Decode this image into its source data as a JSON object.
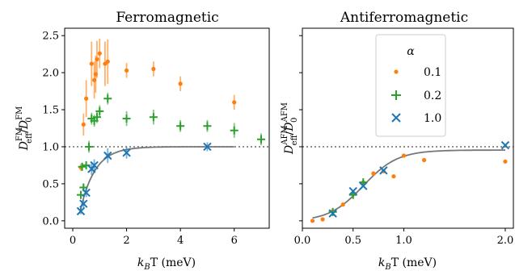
{
  "colors": {
    "orange": "#ff7f0e",
    "green": "#2ca02c",
    "blue": "#1f77b4",
    "fit": "#777777",
    "ref": "#777777"
  },
  "chart_data": [
    {
      "type": "scatter",
      "title": "Ferromagnetic",
      "xlabel_parts": {
        "main": "k",
        "sub": "B",
        "rest": "T (meV)"
      },
      "ylabel_parts": {
        "n1": "D",
        "n1sub": "eff",
        "n1sup": "FM",
        "sep": "/",
        "n2": "D",
        "n2sub": "0",
        "n2sup": "FM"
      },
      "xlim": [
        -0.3,
        7.3
      ],
      "ylim": [
        -0.1,
        2.6
      ],
      "xticks": [
        0,
        2,
        4,
        6
      ],
      "xtick_labels": [
        "0",
        "2",
        "4",
        "6"
      ],
      "yticks": [
        0.0,
        0.5,
        1.0,
        1.5,
        2.0,
        2.5
      ],
      "ytick_labels": [
        "0.0",
        "0.5",
        "1.0",
        "1.5",
        "2.0",
        "2.5"
      ],
      "reference_line": 1.0,
      "series": [
        {
          "alpha": "0.1",
          "marker": "dot",
          "color": "#ff7f0e",
          "x": [
            0.3,
            0.4,
            0.5,
            0.7,
            0.8,
            0.85,
            0.9,
            1.0,
            1.2,
            1.3,
            2.0,
            3.0,
            4.0,
            6.0
          ],
          "y": [
            0.72,
            1.3,
            1.65,
            2.12,
            1.9,
            1.98,
            2.18,
            2.26,
            2.12,
            2.15,
            2.03,
            2.05,
            1.85,
            1.6
          ],
          "err": [
            0.05,
            0.15,
            0.25,
            0.3,
            0.25,
            0.25,
            0.25,
            0.2,
            0.3,
            0.3,
            0.1,
            0.1,
            0.1,
            0.1
          ]
        },
        {
          "alpha": "0.2",
          "marker": "plus",
          "color": "#2ca02c",
          "x": [
            0.3,
            0.35,
            0.4,
            0.5,
            0.6,
            0.7,
            0.8,
            0.9,
            1.0,
            1.3,
            2.0,
            3.0,
            4.0,
            5.0,
            6.0,
            7.0
          ],
          "y": [
            0.35,
            0.73,
            0.45,
            0.75,
            1.0,
            1.38,
            1.35,
            1.4,
            1.48,
            1.65,
            1.38,
            1.4,
            1.28,
            1.28,
            1.22,
            1.1
          ],
          "err": [
            0.05,
            0.05,
            0.05,
            0.05,
            0.08,
            0.08,
            0.08,
            0.08,
            0.08,
            0.08,
            0.1,
            0.1,
            0.08,
            0.08,
            0.1,
            0.08
          ]
        },
        {
          "alpha": "1.0",
          "marker": "x",
          "color": "#1f77b4",
          "x": [
            0.3,
            0.4,
            0.5,
            0.7,
            0.8,
            1.3,
            2.0,
            5.0
          ],
          "y": [
            0.13,
            0.23,
            0.38,
            0.7,
            0.75,
            0.88,
            0.92,
            1.0
          ],
          "err": [
            0.04,
            0.05,
            0.06,
            0.08,
            0.08,
            0.1,
            0.08,
            0.06
          ]
        }
      ],
      "fit": {
        "x0": 0.27,
        "x1": 6.0,
        "Tc": 0.55
      }
    },
    {
      "type": "scatter",
      "title": "Antiferromagnetic",
      "xlabel_parts": {
        "main": "k",
        "sub": "B",
        "rest": "T (meV)"
      },
      "ylabel_parts": {
        "n1": "D",
        "n1sub": "eff",
        "n1sup": "AFM",
        "sep": "/",
        "n2": "D",
        "n2sub": "0",
        "n2sup": "AFM"
      },
      "xlim": [
        -0.0,
        2.08
      ],
      "ylim": [
        -0.1,
        2.6
      ],
      "xticks": [
        0,
        0.5,
        1,
        2
      ],
      "xtick_labels": [
        "0.0",
        "0.5",
        "1.0",
        "2.0"
      ],
      "yticks": [
        0.0,
        0.5,
        1.0,
        1.5,
        2.0,
        2.5
      ],
      "reference_line": 1.0,
      "series": [
        {
          "alpha": "0.1",
          "marker": "dot",
          "color": "#ff7f0e",
          "x": [
            0.1,
            0.2,
            0.3,
            0.4,
            0.5,
            0.6,
            0.7,
            0.8,
            0.9,
            1.0,
            1.2,
            2.0
          ],
          "y": [
            0.0,
            0.02,
            0.13,
            0.22,
            0.37,
            0.52,
            0.64,
            0.67,
            0.6,
            0.88,
            0.82,
            0.8
          ],
          "err": [
            0,
            0,
            0,
            0,
            0,
            0,
            0,
            0,
            0,
            0,
            0,
            0
          ]
        },
        {
          "alpha": "0.2",
          "marker": "plus",
          "color": "#2ca02c",
          "x": [
            0.3,
            0.5,
            0.6
          ],
          "y": [
            0.12,
            0.35,
            0.52
          ],
          "err": [
            0.03,
            0.03,
            0.03
          ]
        },
        {
          "alpha": "1.0",
          "marker": "x",
          "color": "#1f77b4",
          "x": [
            0.3,
            0.5,
            0.6,
            0.8,
            2.0
          ],
          "y": [
            0.1,
            0.4,
            0.47,
            0.68,
            1.02
          ],
          "err": [
            0,
            0,
            0,
            0,
            0
          ]
        }
      ],
      "fit": {
        "x0": 0.1,
        "x1": 2.0,
        "logistic": true
      },
      "legend": {
        "title": "α",
        "placement": "top-right",
        "entries": [
          "0.1",
          "0.2",
          "1.0"
        ]
      }
    }
  ]
}
